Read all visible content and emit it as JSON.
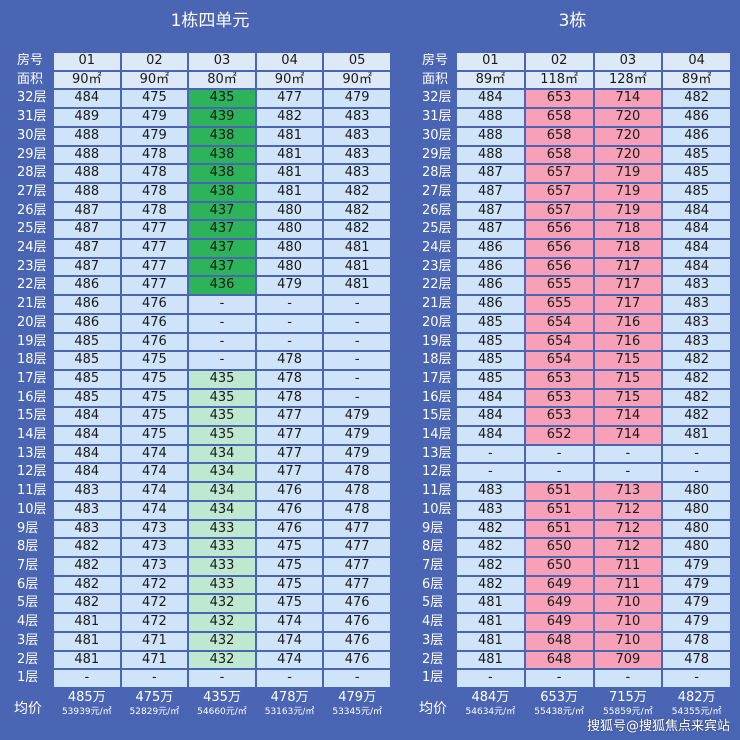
{
  "left": {
    "title": "1栋四单元",
    "header_label": "房号",
    "area_label": "面积",
    "units": [
      "01",
      "02",
      "03",
      "04",
      "05"
    ],
    "areas": [
      "90㎡",
      "90㎡",
      "80㎡",
      "90㎡",
      "90㎡"
    ],
    "rows": [
      {
        "floor": "32层",
        "v": [
          "484",
          "475",
          "435",
          "477",
          "479"
        ]
      },
      {
        "floor": "31层",
        "v": [
          "489",
          "479",
          "439",
          "482",
          "483"
        ]
      },
      {
        "floor": "30层",
        "v": [
          "488",
          "479",
          "438",
          "481",
          "483"
        ]
      },
      {
        "floor": "29层",
        "v": [
          "488",
          "478",
          "438",
          "481",
          "483"
        ]
      },
      {
        "floor": "28层",
        "v": [
          "488",
          "478",
          "438",
          "481",
          "483"
        ]
      },
      {
        "floor": "27层",
        "v": [
          "488",
          "478",
          "438",
          "481",
          "482"
        ]
      },
      {
        "floor": "26层",
        "v": [
          "487",
          "478",
          "437",
          "480",
          "482"
        ]
      },
      {
        "floor": "25层",
        "v": [
          "487",
          "477",
          "437",
          "480",
          "482"
        ]
      },
      {
        "floor": "24层",
        "v": [
          "487",
          "477",
          "437",
          "480",
          "481"
        ]
      },
      {
        "floor": "23层",
        "v": [
          "487",
          "477",
          "437",
          "480",
          "481"
        ]
      },
      {
        "floor": "22层",
        "v": [
          "486",
          "477",
          "436",
          "479",
          "481"
        ]
      },
      {
        "floor": "21层",
        "v": [
          "486",
          "476",
          "-",
          "-",
          "-"
        ]
      },
      {
        "floor": "20层",
        "v": [
          "486",
          "476",
          "-",
          "-",
          "-"
        ]
      },
      {
        "floor": "19层",
        "v": [
          "485",
          "476",
          "-",
          "-",
          "-"
        ]
      },
      {
        "floor": "18层",
        "v": [
          "485",
          "475",
          "-",
          "478",
          "-"
        ]
      },
      {
        "floor": "17层",
        "v": [
          "485",
          "475",
          "435",
          "478",
          "-"
        ]
      },
      {
        "floor": "16层",
        "v": [
          "485",
          "475",
          "435",
          "478",
          "-"
        ]
      },
      {
        "floor": "15层",
        "v": [
          "484",
          "475",
          "435",
          "477",
          "479"
        ]
      },
      {
        "floor": "14层",
        "v": [
          "484",
          "475",
          "435",
          "477",
          "479"
        ]
      },
      {
        "floor": "13层",
        "v": [
          "484",
          "474",
          "434",
          "477",
          "479"
        ]
      },
      {
        "floor": "12层",
        "v": [
          "484",
          "474",
          "434",
          "477",
          "478"
        ]
      },
      {
        "floor": "11层",
        "v": [
          "483",
          "474",
          "434",
          "476",
          "478"
        ]
      },
      {
        "floor": "10层",
        "v": [
          "483",
          "474",
          "434",
          "476",
          "478"
        ]
      },
      {
        "floor": "9层",
        "v": [
          "483",
          "473",
          "433",
          "476",
          "477"
        ]
      },
      {
        "floor": "8层",
        "v": [
          "482",
          "473",
          "433",
          "475",
          "477"
        ]
      },
      {
        "floor": "7层",
        "v": [
          "482",
          "473",
          "433",
          "475",
          "477"
        ]
      },
      {
        "floor": "6层",
        "v": [
          "482",
          "472",
          "433",
          "475",
          "477"
        ]
      },
      {
        "floor": "5层",
        "v": [
          "482",
          "472",
          "432",
          "475",
          "476"
        ]
      },
      {
        "floor": "4层",
        "v": [
          "481",
          "472",
          "432",
          "474",
          "476"
        ]
      },
      {
        "floor": "3层",
        "v": [
          "481",
          "471",
          "432",
          "474",
          "476"
        ]
      },
      {
        "floor": "2层",
        "v": [
          "481",
          "471",
          "432",
          "474",
          "476"
        ]
      },
      {
        "floor": "1层",
        "v": [
          "-",
          "-",
          "-",
          "-",
          "-"
        ]
      }
    ],
    "avg_label": "均价",
    "avg": [
      {
        "total": "485万",
        "unit": "53939元/㎡"
      },
      {
        "total": "475万",
        "unit": "52829元/㎡"
      },
      {
        "total": "435万",
        "unit": "54660元/㎡"
      },
      {
        "total": "478万",
        "unit": "53163元/㎡"
      },
      {
        "total": "479万",
        "unit": "53345元/㎡"
      }
    ]
  },
  "right": {
    "title": "3栋",
    "header_label": "房号",
    "area_label": "面积",
    "units": [
      "01",
      "02",
      "03",
      "04"
    ],
    "areas": [
      "89㎡",
      "118㎡",
      "128㎡",
      "89㎡"
    ],
    "rows": [
      {
        "floor": "32层",
        "v": [
          "484",
          "653",
          "714",
          "482"
        ]
      },
      {
        "floor": "31层",
        "v": [
          "488",
          "658",
          "720",
          "486"
        ]
      },
      {
        "floor": "30层",
        "v": [
          "488",
          "658",
          "720",
          "486"
        ]
      },
      {
        "floor": "29层",
        "v": [
          "488",
          "658",
          "720",
          "485"
        ]
      },
      {
        "floor": "28层",
        "v": [
          "487",
          "657",
          "719",
          "485"
        ]
      },
      {
        "floor": "27层",
        "v": [
          "487",
          "657",
          "719",
          "485"
        ]
      },
      {
        "floor": "26层",
        "v": [
          "487",
          "657",
          "719",
          "484"
        ]
      },
      {
        "floor": "25层",
        "v": [
          "487",
          "656",
          "718",
          "484"
        ]
      },
      {
        "floor": "24层",
        "v": [
          "486",
          "656",
          "718",
          "484"
        ]
      },
      {
        "floor": "23层",
        "v": [
          "486",
          "656",
          "717",
          "484"
        ]
      },
      {
        "floor": "22层",
        "v": [
          "486",
          "655",
          "717",
          "483"
        ]
      },
      {
        "floor": "21层",
        "v": [
          "486",
          "655",
          "717",
          "483"
        ]
      },
      {
        "floor": "20层",
        "v": [
          "485",
          "654",
          "716",
          "483"
        ]
      },
      {
        "floor": "19层",
        "v": [
          "485",
          "654",
          "716",
          "483"
        ]
      },
      {
        "floor": "18层",
        "v": [
          "485",
          "654",
          "715",
          "482"
        ]
      },
      {
        "floor": "17层",
        "v": [
          "485",
          "653",
          "715",
          "482"
        ]
      },
      {
        "floor": "16层",
        "v": [
          "484",
          "653",
          "715",
          "482"
        ]
      },
      {
        "floor": "15层",
        "v": [
          "484",
          "653",
          "714",
          "482"
        ]
      },
      {
        "floor": "14层",
        "v": [
          "484",
          "652",
          "714",
          "481"
        ]
      },
      {
        "floor": "13层",
        "v": [
          "-",
          "-",
          "-",
          "-"
        ]
      },
      {
        "floor": "12层",
        "v": [
          "-",
          "-",
          "-",
          "-"
        ]
      },
      {
        "floor": "11层",
        "v": [
          "483",
          "651",
          "713",
          "480"
        ]
      },
      {
        "floor": "10层",
        "v": [
          "483",
          "651",
          "712",
          "480"
        ]
      },
      {
        "floor": "9层",
        "v": [
          "482",
          "651",
          "712",
          "480"
        ]
      },
      {
        "floor": "8层",
        "v": [
          "482",
          "650",
          "712",
          "480"
        ]
      },
      {
        "floor": "7层",
        "v": [
          "482",
          "650",
          "711",
          "479"
        ]
      },
      {
        "floor": "6层",
        "v": [
          "482",
          "649",
          "711",
          "479"
        ]
      },
      {
        "floor": "5层",
        "v": [
          "481",
          "649",
          "710",
          "479"
        ]
      },
      {
        "floor": "4层",
        "v": [
          "481",
          "649",
          "710",
          "479"
        ]
      },
      {
        "floor": "3层",
        "v": [
          "481",
          "648",
          "710",
          "478"
        ]
      },
      {
        "floor": "2层",
        "v": [
          "481",
          "648",
          "709",
          "478"
        ]
      },
      {
        "floor": "1层",
        "v": [
          "-",
          "-",
          "-",
          "-"
        ]
      }
    ],
    "avg_label": "均价",
    "avg": [
      {
        "total": "484万",
        "unit": "54634元/㎡"
      },
      {
        "total": "653万",
        "unit": "55438元/㎡"
      },
      {
        "total": "715万",
        "unit": "55859元/㎡"
      },
      {
        "total": "482万",
        "unit": "54355元/㎡"
      }
    ]
  },
  "watermark": "搜狐号@搜狐焦点来宾站",
  "colors": {
    "background": "#4a65b3",
    "cell": "#cfe3f9",
    "highlight_green": "#2db35a",
    "highlight_light_green": "#bfe8d0",
    "highlight_pink": "#f7a0b8"
  }
}
